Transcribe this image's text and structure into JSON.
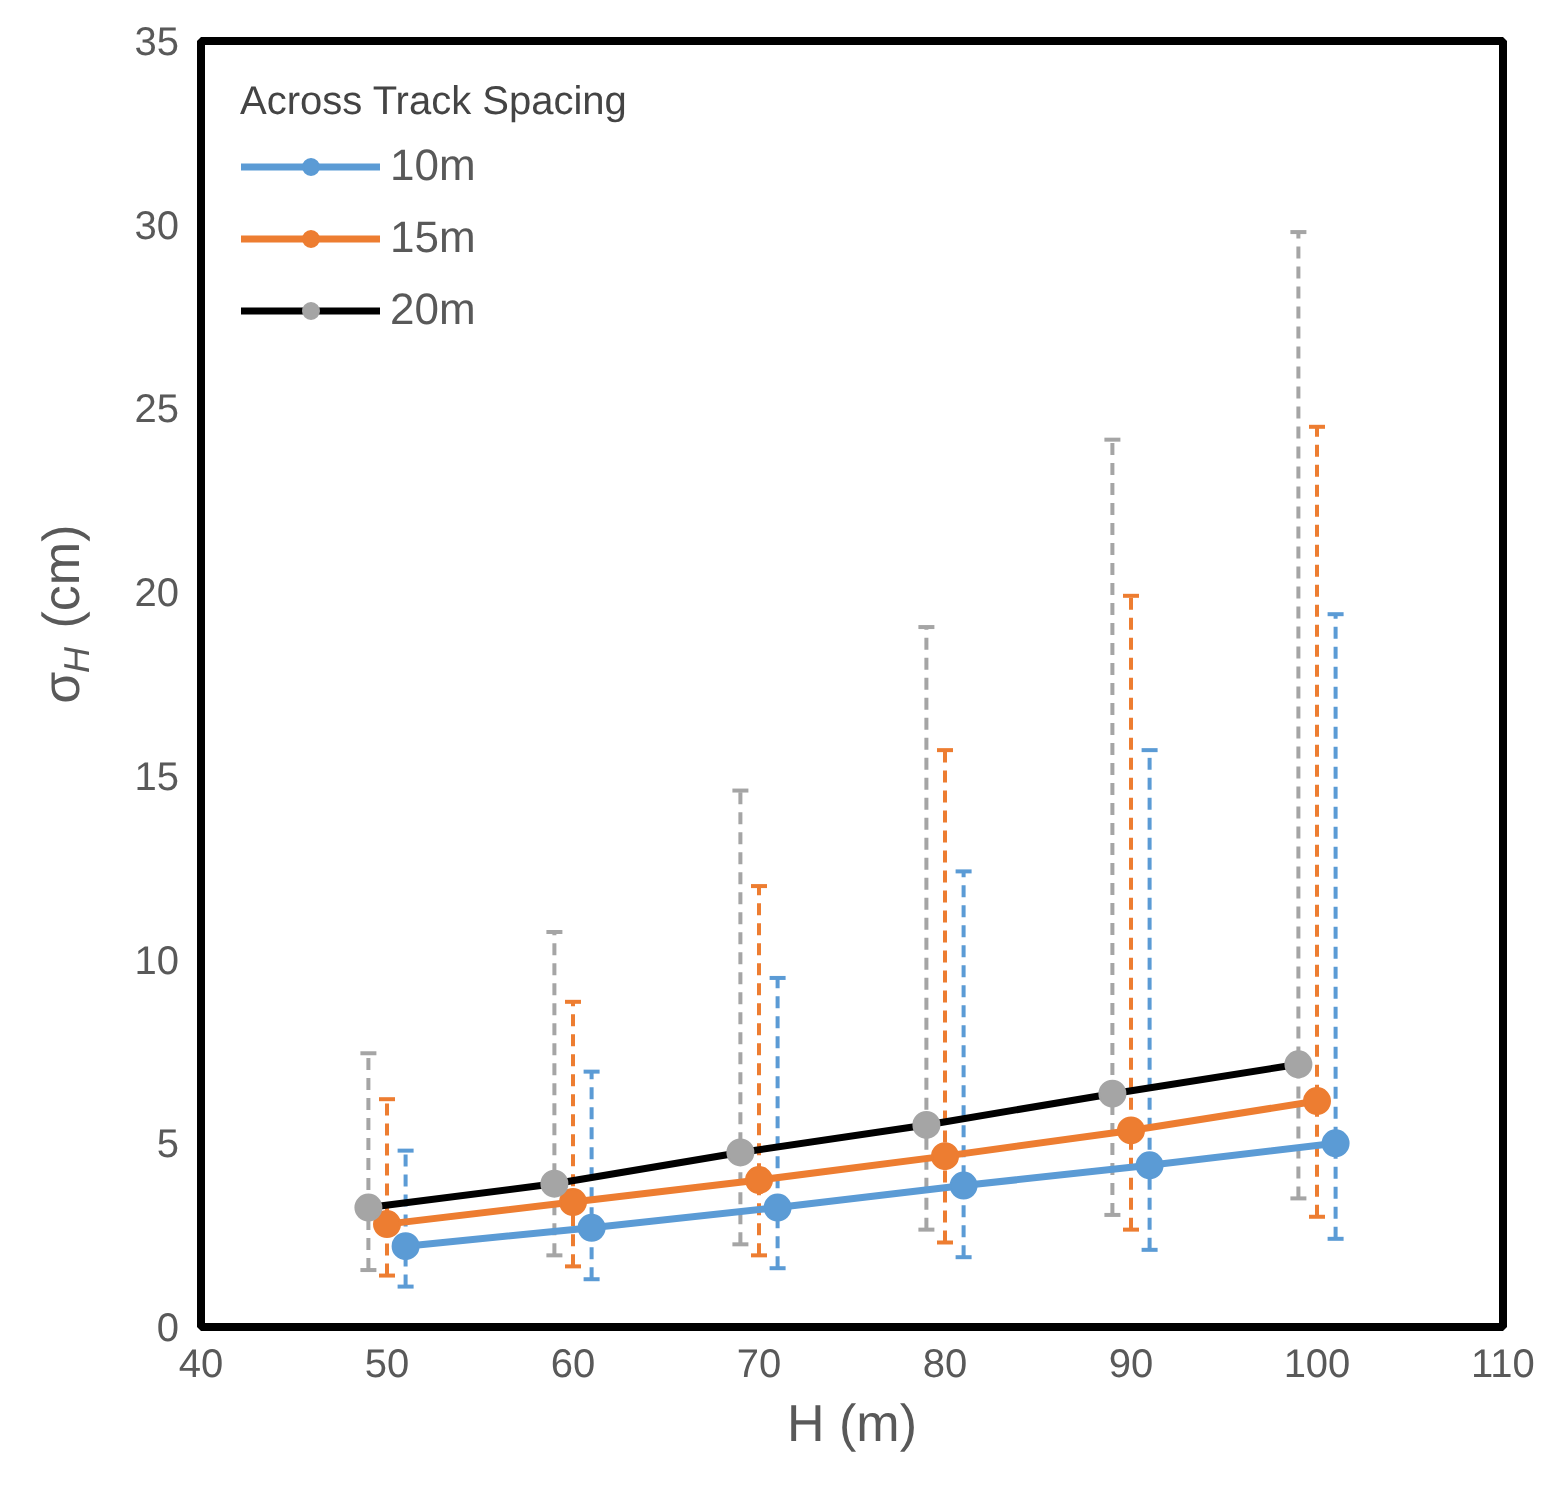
{
  "chart_data": {
    "type": "line",
    "xlabel": "H (m)",
    "ylabel": "σ$_{H}$ (cm)",
    "legend_title": "Across Track Spacing",
    "legend": "top left",
    "grid": false,
    "marker": "circle",
    "line_style": "solid",
    "xlim": [
      40,
      110
    ],
    "xticks": [
      40,
      50,
      60,
      70,
      80,
      90,
      100,
      110
    ],
    "ylim": [
      0,
      35
    ],
    "yticks": [
      0,
      5,
      10,
      15,
      20,
      25,
      30,
      35
    ],
    "series": [
      {
        "name": "10m",
        "color": "#5b9bd5",
        "x": [
          51,
          61,
          71,
          81,
          91,
          101
        ],
        "values": [
          2.2,
          2.7,
          3.25,
          3.85,
          4.4,
          5.0
        ],
        "errors": [
          [
            1.1,
            4.8
          ],
          [
            1.3,
            6.95
          ],
          [
            1.6,
            9.5
          ],
          [
            1.9,
            12.4
          ],
          [
            2.1,
            15.7
          ],
          [
            2.4,
            19.4
          ]
        ]
      },
      {
        "name": "15m",
        "color": "#ed7d31",
        "x": [
          50,
          60,
          70,
          80,
          90,
          100
        ],
        "values": [
          2.8,
          3.4,
          4.0,
          4.65,
          5.35,
          6.15
        ],
        "errors": [
          [
            1.4,
            6.2
          ],
          [
            1.65,
            8.85
          ],
          [
            1.95,
            12.0
          ],
          [
            2.3,
            15.7
          ],
          [
            2.65,
            19.9
          ],
          [
            3.0,
            24.5
          ]
        ]
      },
      {
        "name": "20m",
        "color": "#000000",
        "colors": [
          "#a5a5a5",
          "#a5a5a5",
          "#a5a5a5",
          "#a5a5a5",
          "#a5a5a5",
          "#a5a5a5"
        ],
        "x": [
          49,
          59,
          69,
          79,
          89,
          99
        ],
        "values": [
          3.25,
          3.9,
          4.75,
          5.5,
          6.35,
          7.15
        ],
        "errors": [
          [
            1.55,
            7.45
          ],
          [
            1.95,
            10.75
          ],
          [
            2.25,
            14.6
          ],
          [
            2.65,
            19.05
          ],
          [
            3.05,
            24.15
          ],
          [
            3.5,
            29.8
          ]
        ]
      }
    ]
  }
}
